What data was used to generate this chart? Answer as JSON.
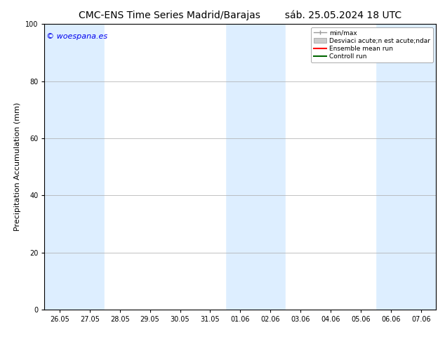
{
  "title": "CMC-ENS Time Series Madrid/Barajas",
  "subtitle": "sáb. 25.05.2024 18 UTC",
  "ylabel": "Precipitation Accumulation (mm)",
  "ylim": [
    0,
    100
  ],
  "yticks": [
    0,
    20,
    40,
    60,
    80,
    100
  ],
  "xtick_labels": [
    "26.05",
    "27.05",
    "28.05",
    "29.05",
    "30.05",
    "31.05",
    "01.06",
    "02.06",
    "03.06",
    "04.06",
    "05.06",
    "06.06",
    "07.06"
  ],
  "watermark": "© woespana.es",
  "bg_color": "#ffffff",
  "plot_bg_color": "#ddeeff",
  "band_color": "#ddeeff",
  "white_bg": "#ffffff",
  "legend_entries": [
    "min/max",
    "Desviaci acute;n est acute;ndar",
    "Ensemble mean run",
    "Controll run"
  ],
  "legend_colors": [
    "#aaaaaa",
    "#cccccc",
    "#ff0000",
    "#008000"
  ],
  "title_fontsize": 10,
  "axis_fontsize": 8,
  "tick_fontsize": 7,
  "watermark_color": "#0000ee"
}
